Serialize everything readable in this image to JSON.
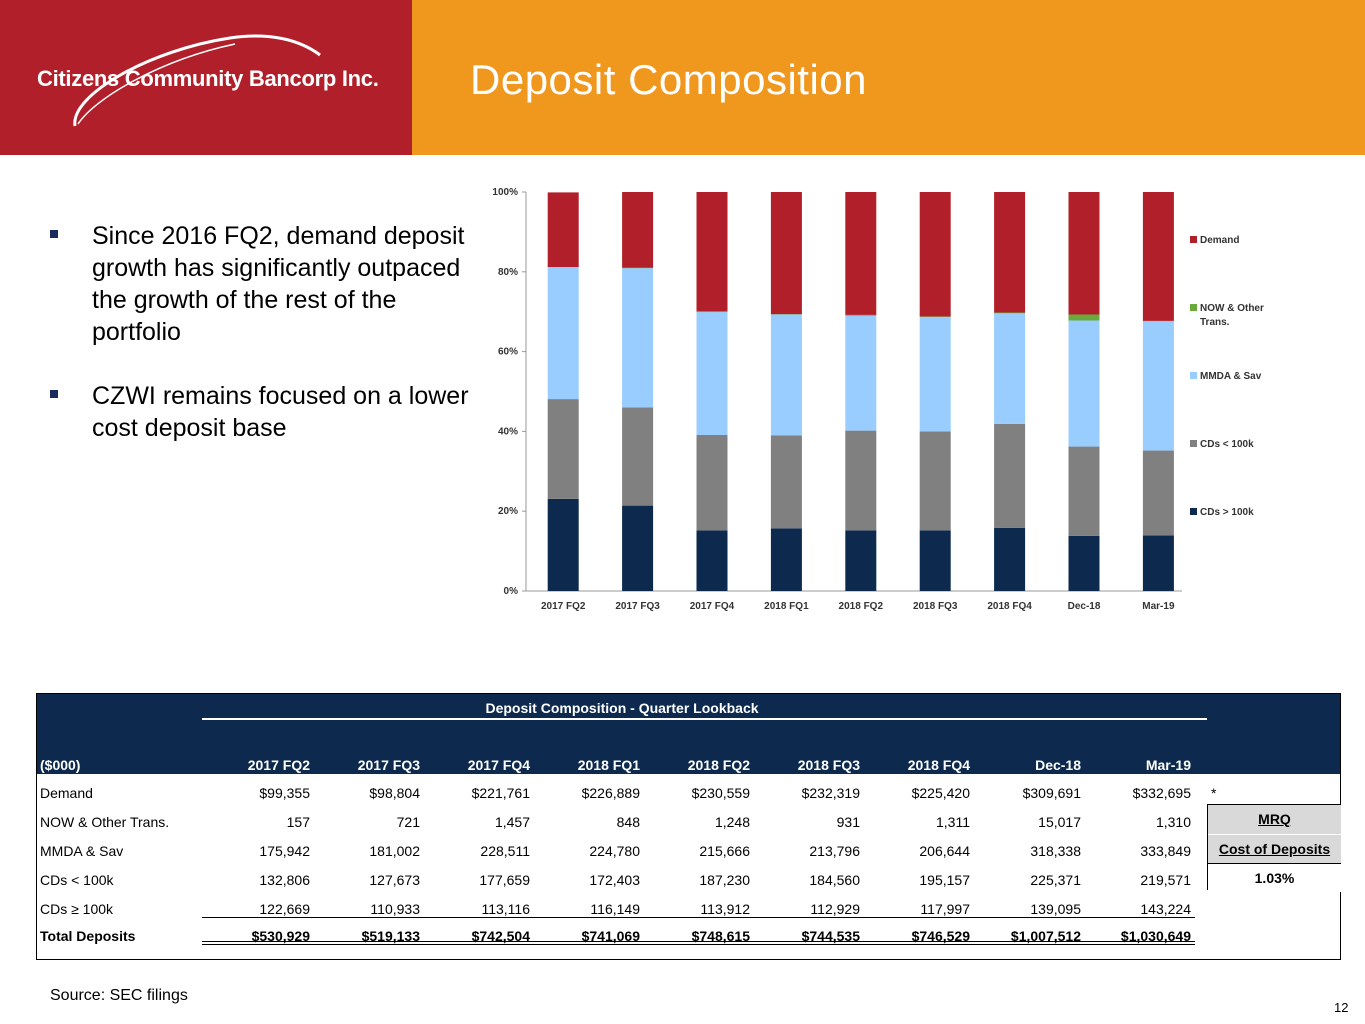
{
  "header": {
    "company": "Citizens Community Bancorp Inc.",
    "title": "Deposit Composition",
    "colors": {
      "left": "#b1202a",
      "right": "#f0971e"
    }
  },
  "bullets": [
    "Since 2016 FQ2, demand deposit growth has significantly outpaced the growth of the rest of the portfolio",
    "CZWI remains focused on a lower cost deposit base"
  ],
  "chart_data": {
    "type": "bar",
    "stacked": true,
    "percent": true,
    "title": "",
    "xlabel": "",
    "ylabel": "",
    "ylim": [
      0,
      100
    ],
    "yticks": [
      "0%",
      "20%",
      "40%",
      "60%",
      "80%",
      "100%"
    ],
    "categories": [
      "2017 FQ2",
      "2017 FQ3",
      "2017 FQ4",
      "2018 FQ1",
      "2018 FQ2",
      "2018 FQ3",
      "2018 FQ4",
      "Dec-18",
      "Mar-19"
    ],
    "series": [
      {
        "name": "CDs > 100k",
        "color": "#0d2a4e",
        "values": [
          23.1,
          21.4,
          15.2,
          15.7,
          15.2,
          15.2,
          15.8,
          13.8,
          13.9
        ]
      },
      {
        "name": "CDs < 100k",
        "color": "#808080",
        "values": [
          25.0,
          24.6,
          23.9,
          23.3,
          25.0,
          24.8,
          26.1,
          22.4,
          21.3
        ]
      },
      {
        "name": "MMDA & Sav",
        "color": "#99ccff",
        "values": [
          33.1,
          34.9,
          30.8,
          30.3,
          28.8,
          28.7,
          27.7,
          31.6,
          32.4
        ]
      },
      {
        "name": "NOW & Other Trans.",
        "color": "#6aaa3a",
        "values": [
          0.0,
          0.1,
          0.2,
          0.1,
          0.2,
          0.1,
          0.2,
          1.5,
          0.1
        ]
      },
      {
        "name": "Demand",
        "color": "#b1202a",
        "values": [
          18.7,
          19.0,
          29.9,
          30.6,
          30.8,
          31.2,
          30.2,
          30.7,
          32.3
        ]
      }
    ],
    "legend_order": [
      "Demand",
      "NOW & Other Trans.",
      "MMDA & Sav",
      "CDs < 100k",
      "CDs > 100k"
    ],
    "legend_position": "right"
  },
  "table": {
    "title": "Deposit Composition - Quarter Lookback",
    "unit_label": "($000)",
    "columns": [
      "2017 FQ2",
      "2017 FQ3",
      "2017 FQ4",
      "2018 FQ1",
      "2018 FQ2",
      "2018 FQ3",
      "2018 FQ4",
      "Dec-18",
      "Mar-19"
    ],
    "rows": [
      {
        "label": "Demand",
        "values": [
          "$99,355",
          "$98,804",
          "$221,761",
          "$226,889",
          "$230,559",
          "$232,319",
          "$225,420",
          "$309,691",
          "$332,695"
        ]
      },
      {
        "label": "NOW & Other Trans.",
        "values": [
          "157",
          "721",
          "1,457",
          "848",
          "1,248",
          "931",
          "1,311",
          "15,017",
          "1,310"
        ]
      },
      {
        "label": "MMDA & Sav",
        "values": [
          "175,942",
          "181,002",
          "228,511",
          "224,780",
          "215,666",
          "213,796",
          "206,644",
          "318,338",
          "333,849"
        ]
      },
      {
        "label": "CDs < 100k",
        "values": [
          "132,806",
          "127,673",
          "177,659",
          "172,403",
          "187,230",
          "184,560",
          "195,157",
          "225,371",
          "219,571"
        ]
      },
      {
        "label": "CDs ≥ 100k",
        "values": [
          "122,669",
          "110,933",
          "113,116",
          "116,149",
          "113,912",
          "112,929",
          "117,997",
          "139,095",
          "143,224"
        ]
      }
    ],
    "total": {
      "label": "Total Deposits",
      "values": [
        "$530,929",
        "$519,133",
        "$742,504",
        "$741,069",
        "$748,615",
        "$744,535",
        "$746,529",
        "$1,007,512",
        "$1,030,649"
      ]
    },
    "footnote_marker": "*",
    "mrq": {
      "label": "MRQ",
      "sublabel": "Cost of Deposits",
      "value": "1.03%"
    }
  },
  "source": "Source: SEC filings",
  "page_number": "12"
}
